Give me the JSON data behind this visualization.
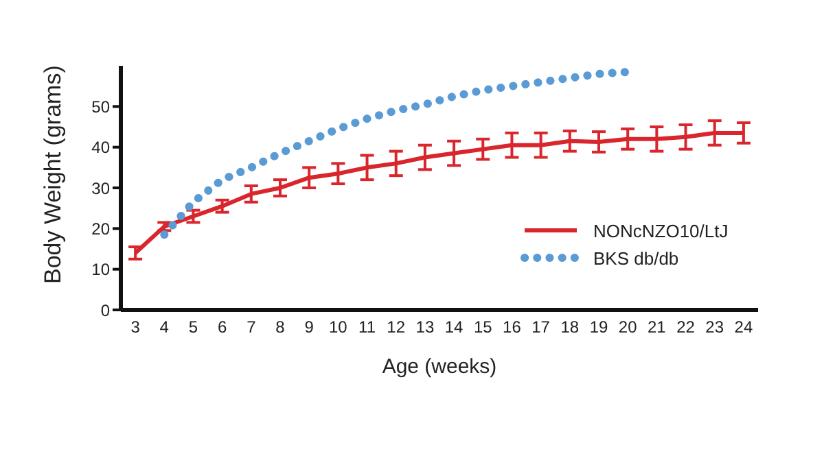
{
  "chart_data": {
    "type": "line",
    "xlabel": "Age (weeks)",
    "ylabel": "Body Weight (grams)",
    "x": [
      3,
      4,
      5,
      6,
      7,
      8,
      9,
      10,
      11,
      12,
      13,
      14,
      15,
      16,
      17,
      18,
      19,
      20,
      21,
      22,
      23,
      24
    ],
    "series": [
      {
        "name": "NONcNZO10/LtJ",
        "color": "#d9262c",
        "line_style": "solid",
        "values": [
          14,
          20.5,
          23,
          25.5,
          28.5,
          30,
          32.5,
          33.5,
          35,
          36,
          37.5,
          38.5,
          39.5,
          40.5,
          40.5,
          41.5,
          41.3,
          42,
          42,
          42.5,
          43.5,
          43.5
        ],
        "errors": [
          1.5,
          1,
          1.5,
          1.5,
          2,
          2,
          2.5,
          2.5,
          3,
          3,
          3,
          3,
          2.5,
          3,
          3,
          2.5,
          2.5,
          2.5,
          3,
          3,
          3,
          2.5
        ]
      },
      {
        "name": "BKS db/db",
        "color": "#5b9bd5",
        "line_style": "dotted",
        "values": [
          null,
          18.5,
          26.5,
          32,
          35,
          38.5,
          41.5,
          44.5,
          47,
          49,
          50.5,
          52.5,
          54,
          55,
          56,
          57,
          58,
          58.5,
          null,
          null,
          null,
          null
        ]
      }
    ],
    "xlim": [
      2.5,
      24.5
    ],
    "xticks": [
      3,
      4,
      5,
      6,
      7,
      8,
      9,
      10,
      11,
      12,
      13,
      14,
      15,
      16,
      17,
      18,
      19,
      20,
      21,
      22,
      23,
      24
    ],
    "ylim": [
      0,
      60
    ],
    "yticks": [
      0,
      10,
      20,
      30,
      40,
      50
    ],
    "grid": false,
    "legend": "right",
    "marker": "none"
  }
}
